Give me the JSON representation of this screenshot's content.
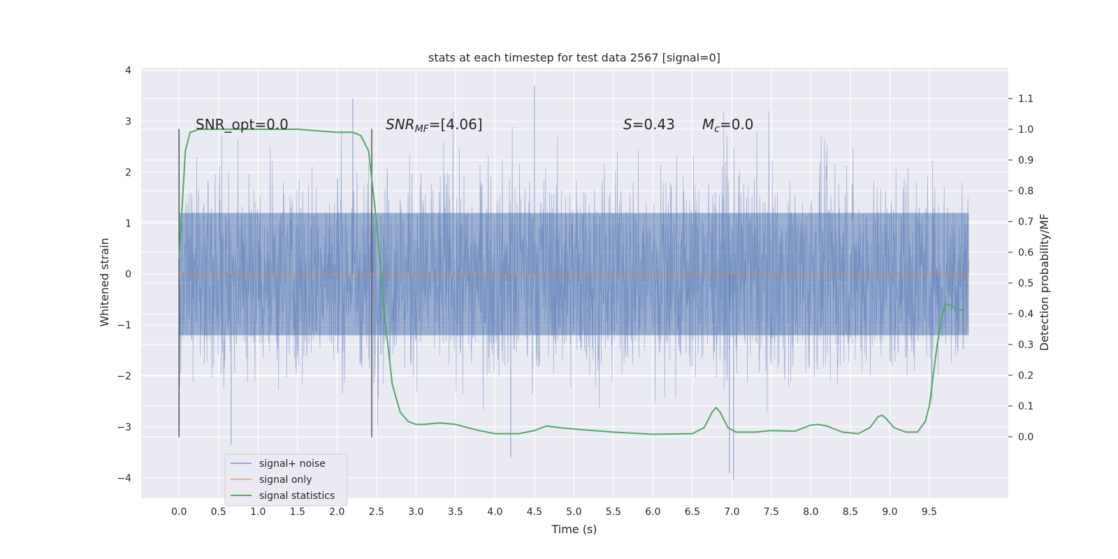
{
  "chart_data": {
    "type": "line",
    "title": "stats at each timestep for test data 2567 [signal=0]",
    "xlabel": "Time (s)",
    "ylabel": "Whitened strain",
    "ylabel_right": "Detection probability/MF",
    "xlim": [
      -0.48,
      10.5
    ],
    "ylim": [
      -4.4,
      4.05
    ],
    "ylim_right": [
      -0.2,
      1.2
    ],
    "x_ticks": [
      0.0,
      0.5,
      1.0,
      1.5,
      2.0,
      2.5,
      3.0,
      3.5,
      4.0,
      4.5,
      5.0,
      5.5,
      6.0,
      6.5,
      7.0,
      7.5,
      8.0,
      8.5,
      9.0,
      9.5
    ],
    "x_tick_labels": [
      "0.0",
      "0.5",
      "1.0",
      "1.5",
      "2.0",
      "2.5",
      "3.0",
      "3.5",
      "4.0",
      "4.5",
      "5.0",
      "5.5",
      "6.0",
      "6.5",
      "7.0",
      "7.5",
      "8.0",
      "8.5",
      "9.0",
      "9.5"
    ],
    "y_ticks": [
      -4,
      -3,
      -2,
      -1,
      0,
      1,
      2,
      3,
      4
    ],
    "y_tick_labels": [
      "−4",
      "−3",
      "−2",
      "−1",
      "0",
      "1",
      "2",
      "3",
      "4"
    ],
    "y_ticks_right": [
      0.0,
      0.1,
      0.2,
      0.3,
      0.4,
      0.5,
      0.6,
      0.7,
      0.8,
      0.9,
      1.0,
      1.1
    ],
    "y_tick_labels_right": [
      "0.0",
      "0.1",
      "0.2",
      "0.3",
      "0.4",
      "0.5",
      "0.6",
      "0.7",
      "0.8",
      "0.9",
      "1.0",
      "1.1"
    ],
    "grid": true,
    "legend_placement": "lower-left",
    "annotations": {
      "snr_opt": "SNR_opt=0.0",
      "snr_mf_prefix": "SNR",
      "snr_mf_sub": "MF",
      "snr_mf_value": "=[4.06]",
      "s_prefix": "S",
      "s_value": "=0.43",
      "mc_prefix": "M",
      "mc_sub": "c",
      "mc_value": "=0.0"
    },
    "vlines": [
      {
        "x": 0.0,
        "y0": -3.2,
        "y1": 2.85
      },
      {
        "x": 2.44,
        "y0": -3.2,
        "y1": 2.85
      }
    ],
    "noise": {
      "x_start": 0.0,
      "x_end": 10.0,
      "core_low": -1.2,
      "core_high": 1.2,
      "spike_max": 3.7,
      "spike_min": -4.05
    },
    "series": [
      {
        "name": "signal+ noise",
        "color": "#4c72b0",
        "axis": "left",
        "x": [
          0.0,
          0.66,
          2.2,
          4.5,
          4.2,
          6.97,
          7.02,
          10.0
        ],
        "y": [
          0.9,
          -3.35,
          3.45,
          3.7,
          -3.6,
          -3.9,
          -4.05,
          0.0
        ]
      },
      {
        "name": "signal only",
        "color": "#dd8452",
        "axis": "left",
        "x": [
          0.0,
          10.0
        ],
        "y": [
          0.0,
          0.0
        ]
      },
      {
        "name": "signal statistics",
        "color": "#55a868",
        "axis": "right",
        "x": [
          0.0,
          0.08,
          0.14,
          0.25,
          0.5,
          1.0,
          1.5,
          2.0,
          2.2,
          2.3,
          2.4,
          2.5,
          2.6,
          2.7,
          2.8,
          2.9,
          3.0,
          3.1,
          3.3,
          3.5,
          3.8,
          4.0,
          4.3,
          4.5,
          4.65,
          4.8,
          5.0,
          5.5,
          6.0,
          6.5,
          6.65,
          6.75,
          6.8,
          6.85,
          6.95,
          7.05,
          7.3,
          7.5,
          7.8,
          8.0,
          8.1,
          8.2,
          8.4,
          8.6,
          8.75,
          8.85,
          8.9,
          8.95,
          9.05,
          9.2,
          9.35,
          9.45,
          9.5,
          9.55,
          9.6,
          9.65,
          9.7,
          9.75,
          9.85,
          9.95
        ],
        "y": [
          0.58,
          0.93,
          0.99,
          1.0,
          1.0,
          1.0,
          1.0,
          0.99,
          0.99,
          0.98,
          0.93,
          0.7,
          0.4,
          0.17,
          0.08,
          0.05,
          0.04,
          0.04,
          0.045,
          0.04,
          0.02,
          0.01,
          0.01,
          0.02,
          0.035,
          0.03,
          0.025,
          0.015,
          0.008,
          0.01,
          0.03,
          0.08,
          0.095,
          0.08,
          0.03,
          0.015,
          0.015,
          0.02,
          0.018,
          0.038,
          0.04,
          0.035,
          0.015,
          0.01,
          0.03,
          0.065,
          0.07,
          0.06,
          0.03,
          0.015,
          0.015,
          0.05,
          0.1,
          0.2,
          0.3,
          0.38,
          0.43,
          0.43,
          0.415,
          0.41
        ]
      }
    ],
    "legend": [
      {
        "label": "signal+ noise",
        "color": "#4c72b0"
      },
      {
        "label": "signal only",
        "color": "#dd8452"
      },
      {
        "label": "signal statistics",
        "color": "#55a868"
      }
    ]
  }
}
